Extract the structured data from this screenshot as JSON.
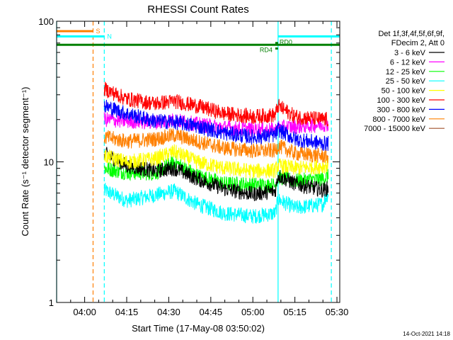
{
  "chart_data": {
    "type": "line",
    "title": "RHESSI Count Rates",
    "xlabel": "Start Time (17-May-08 03:50:02)",
    "ylabel": "Count Rate (s⁻¹ detector segment⁻¹)",
    "y_scale": "log",
    "xlim": [
      "03:50",
      "05:31"
    ],
    "ylim": [
      1,
      100
    ],
    "x_ticks": [
      "04:00",
      "04:15",
      "04:30",
      "04:45",
      "05:00",
      "05:15",
      "05:30"
    ],
    "y_ticks": [
      "1",
      "10",
      "100"
    ],
    "legend_header": [
      "Det 1f,3f,4f,5f,6f,9f,",
      "FDecim 2, Att 0"
    ],
    "legend_position": "right",
    "timestamp": "14-Oct-2021 14:18",
    "x": [
      "04:07",
      "04:15",
      "04:25",
      "04:32",
      "04:40",
      "04:50",
      "05:00",
      "05:08",
      "05:09",
      "05:15",
      "05:25",
      "05:27"
    ],
    "series": [
      {
        "name": "3 - 6 keV",
        "color": "#000000",
        "values": [
          11.5,
          9.4,
          8.6,
          9.0,
          7.6,
          6.4,
          5.9,
          6.2,
          8.0,
          7.0,
          6.3,
          6.5
        ]
      },
      {
        "name": "6 - 12 keV",
        "color": "#ff00ff",
        "values": [
          20,
          19.5,
          19.2,
          19.8,
          18.5,
          17.5,
          17.0,
          16.8,
          17.5,
          17.8,
          18.5,
          18.6
        ]
      },
      {
        "name": "12 - 25 keV",
        "color": "#00ff00",
        "values": [
          9.0,
          8.4,
          8.3,
          10.0,
          8.0,
          7.0,
          6.9,
          6.8,
          7.8,
          7.3,
          7.6,
          7.9
        ]
      },
      {
        "name": "25 - 50 keV",
        "color": "#00ffff",
        "values": [
          6.3,
          5.3,
          5.8,
          6.2,
          5.0,
          4.3,
          4.1,
          4.3,
          5.4,
          4.7,
          5.0,
          6.1
        ]
      },
      {
        "name": "50 - 100 keV",
        "color": "#ffff00",
        "values": [
          11.0,
          10.0,
          10.5,
          11.8,
          10.0,
          9.0,
          8.6,
          8.7,
          9.4,
          9.0,
          9.3,
          9.5
        ]
      },
      {
        "name": "100 - 300 keV",
        "color": "#ff0000",
        "values": [
          33,
          28,
          26,
          27,
          25,
          22,
          21,
          21.5,
          25,
          21,
          20,
          20
        ]
      },
      {
        "name": "300 - 800 keV",
        "color": "#0000ff",
        "values": [
          25,
          22,
          19.5,
          19.2,
          18,
          16,
          15,
          15.5,
          17,
          14.5,
          13.5,
          13.5
        ]
      },
      {
        "name": "800 - 7000 keV",
        "color": "#ff8000",
        "values": [
          15,
          14,
          14.5,
          15.5,
          14,
          12.5,
          12,
          12,
          13,
          11.5,
          11,
          11
        ]
      },
      {
        "name": "7000 - 15000 keV",
        "color": "#a0522d",
        "values": [
          null,
          null,
          null,
          null,
          null,
          null,
          null,
          null,
          null,
          null,
          null,
          null
        ]
      }
    ],
    "state_bars": [
      {
        "label": "S",
        "color": "#ff8000",
        "start": "03:50",
        "end": "04:03",
        "level": 85
      },
      {
        "label": "N",
        "color": "#00ffff",
        "start": "03:50",
        "end": "04:07",
        "level": 78
      },
      {
        "label": "",
        "color": "#00ffff",
        "start": "05:09",
        "end": "05:31",
        "level": 78
      },
      {
        "label": "",
        "color": "#008000",
        "start": "03:50",
        "end": "05:31",
        "level": 68
      },
      {
        "label": "RD0",
        "color": "#008000",
        "start": "05:08",
        "end": "05:09",
        "level": 70
      },
      {
        "label": "RD4",
        "color": "#008000",
        "start": "05:08",
        "end": "05:09",
        "level": 64
      }
    ],
    "vertical_markers": [
      {
        "time": "03:50",
        "color": "#00ffff",
        "style": "solid"
      },
      {
        "time": "04:03",
        "color": "#ff8000",
        "style": "dashed"
      },
      {
        "time": "04:07",
        "color": "#00ffff",
        "style": "dashed"
      },
      {
        "time": "05:09",
        "color": "#00ffff",
        "style": "solid"
      },
      {
        "time": "05:28",
        "color": "#00ffff",
        "style": "dashed"
      }
    ]
  }
}
